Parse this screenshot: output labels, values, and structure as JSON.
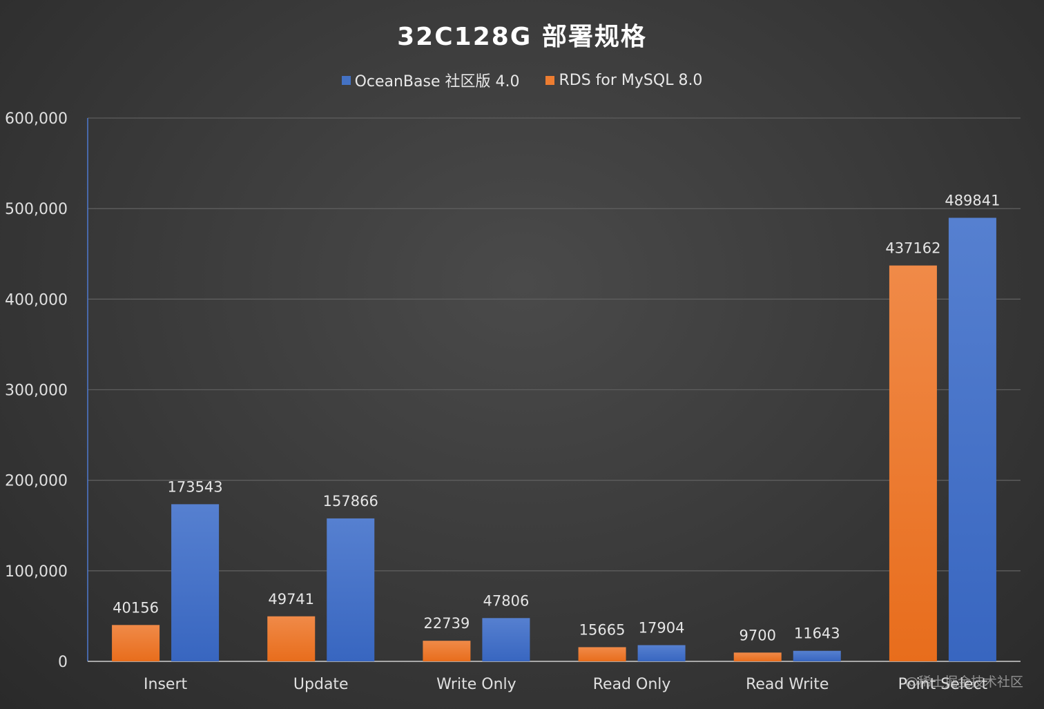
{
  "chart_data": {
    "type": "bar",
    "title": "32C128G 部署规格",
    "categories": [
      "Insert",
      "Update",
      "Write Only",
      "Read Only",
      "Read Write",
      "Point Select"
    ],
    "series": [
      {
        "name": "RDS for MySQL 8.0",
        "values": [
          40156,
          49741,
          22739,
          15665,
          9700,
          437162
        ]
      },
      {
        "name": "OceanBase 社区版 4.0",
        "values": [
          173543,
          157866,
          47806,
          17904,
          11643,
          489841
        ]
      }
    ],
    "legend_order": [
      "OceanBase 社区版 4.0",
      "RDS for MySQL 8.0"
    ],
    "y_ticks": [
      "0",
      "100,000",
      "200,000",
      "300,000",
      "400,000",
      "500,000",
      "600,000"
    ],
    "ylim": [
      0,
      600000
    ],
    "grid": true,
    "legend_position": "top-center"
  },
  "colors": {
    "RDS for MySQL 8.0": "#ed7d31",
    "OceanBase 社区版 4.0": "#4472c4"
  },
  "watermark": "@稀土掘金技术社区"
}
